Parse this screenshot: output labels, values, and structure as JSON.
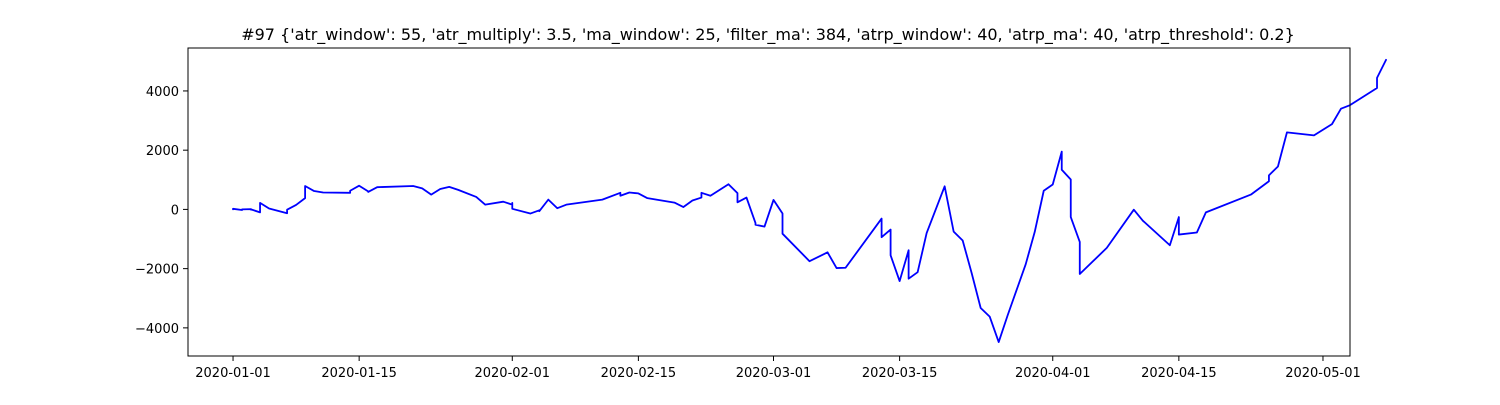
{
  "chart_data": {
    "type": "line",
    "title": "#97 {'atr_window': 55, 'atr_multiply': 3.5, 'ma_window': 25, 'filter_ma': 384, 'atrp_window': 40, 'atrp_ma': 40, 'atrp_threshold': 0.2}",
    "xlabel": "",
    "ylabel": "",
    "x_axis_type": "date",
    "xlim": [
      "2019-12-27",
      "2020-05-04"
    ],
    "ylim": [
      -4950,
      5450
    ],
    "grid": false,
    "legend": "none",
    "xticks": [
      "2020-01-01",
      "2020-01-15",
      "2020-02-01",
      "2020-02-15",
      "2020-03-01",
      "2020-03-15",
      "2020-04-01",
      "2020-04-15",
      "2020-05-01"
    ],
    "yticks": [
      4000,
      2000,
      0,
      -2000,
      -4000
    ],
    "ytick_labels": [
      "4000",
      "2000",
      "0",
      "−2000",
      "−4000"
    ],
    "series": [
      {
        "color": "#0000ff",
        "points": [
          [
            "2020-01-01",
            0
          ],
          [
            "2020-01-01",
            20
          ],
          [
            "2020-01-02",
            -20
          ],
          [
            "2020-01-02",
            0
          ],
          [
            "2020-01-03",
            10
          ],
          [
            "2020-01-03",
            -10
          ],
          [
            "2020-01-03",
            0
          ],
          [
            "2020-01-04",
            -100
          ],
          [
            "2020-01-04",
            220
          ],
          [
            "2020-01-05",
            30
          ],
          [
            "2020-01-07",
            -130
          ],
          [
            "2020-01-07",
            -10
          ],
          [
            "2020-01-08",
            150
          ],
          [
            "2020-01-09",
            380
          ],
          [
            "2020-01-09",
            790
          ],
          [
            "2020-01-10",
            620
          ],
          [
            "2020-01-11",
            570
          ],
          [
            "2020-01-14",
            560
          ],
          [
            "2020-01-14",
            630
          ],
          [
            "2020-01-15",
            800
          ],
          [
            "2020-01-16",
            610
          ],
          [
            "2020-01-16",
            590
          ],
          [
            "2020-01-17",
            750
          ],
          [
            "2020-01-21",
            790
          ],
          [
            "2020-01-22",
            710
          ],
          [
            "2020-01-23",
            500
          ],
          [
            "2020-01-24",
            690
          ],
          [
            "2020-01-25",
            760
          ],
          [
            "2020-01-26",
            660
          ],
          [
            "2020-01-28",
            420
          ],
          [
            "2020-01-29",
            160
          ],
          [
            "2020-01-31",
            260
          ],
          [
            "2020-02-01",
            160
          ],
          [
            "2020-02-01",
            220
          ],
          [
            "2020-02-01",
            20
          ],
          [
            "2020-02-03",
            -140
          ],
          [
            "2020-02-04",
            -30
          ],
          [
            "2020-02-04",
            -60
          ],
          [
            "2020-02-05",
            330
          ],
          [
            "2020-02-06",
            40
          ],
          [
            "2020-02-07",
            160
          ],
          [
            "2020-02-11",
            330
          ],
          [
            "2020-02-13",
            560
          ],
          [
            "2020-02-13",
            460
          ],
          [
            "2020-02-14",
            570
          ],
          [
            "2020-02-15",
            540
          ],
          [
            "2020-02-16",
            380
          ],
          [
            "2020-02-18",
            280
          ],
          [
            "2020-02-19",
            230
          ],
          [
            "2020-02-20",
            80
          ],
          [
            "2020-02-21",
            300
          ],
          [
            "2020-02-22",
            400
          ],
          [
            "2020-02-22",
            560
          ],
          [
            "2020-02-23",
            460
          ],
          [
            "2020-02-25",
            850
          ],
          [
            "2020-02-26",
            550
          ],
          [
            "2020-02-26",
            240
          ],
          [
            "2020-02-27",
            400
          ],
          [
            "2020-02-28",
            -460
          ],
          [
            "2020-02-28",
            -520
          ],
          [
            "2020-02-29",
            -580
          ],
          [
            "2020-03-01",
            320
          ],
          [
            "2020-03-02",
            -140
          ],
          [
            "2020-03-02",
            -820
          ],
          [
            "2020-03-05",
            -1750
          ],
          [
            "2020-03-07",
            -1450
          ],
          [
            "2020-03-08",
            -1980
          ],
          [
            "2020-03-09",
            -1970
          ],
          [
            "2020-03-13",
            -310
          ],
          [
            "2020-03-13",
            -940
          ],
          [
            "2020-03-14",
            -680
          ],
          [
            "2020-03-14",
            -750
          ],
          [
            "2020-03-14",
            -1550
          ],
          [
            "2020-03-15",
            -2420
          ],
          [
            "2020-03-16",
            -1380
          ],
          [
            "2020-03-16",
            -2340
          ],
          [
            "2020-03-17",
            -2120
          ],
          [
            "2020-03-18",
            -800
          ],
          [
            "2020-03-20",
            780
          ],
          [
            "2020-03-21",
            -750
          ],
          [
            "2020-03-22",
            -1050
          ],
          [
            "2020-03-23",
            -2150
          ],
          [
            "2020-03-24",
            -3330
          ],
          [
            "2020-03-25",
            -3620
          ],
          [
            "2020-03-26",
            -4480
          ],
          [
            "2020-03-27",
            -3570
          ],
          [
            "2020-03-29",
            -1850
          ],
          [
            "2020-03-30",
            -760
          ],
          [
            "2020-03-31",
            630
          ],
          [
            "2020-04-01",
            840
          ],
          [
            "2020-04-02",
            1950
          ],
          [
            "2020-04-02",
            1340
          ],
          [
            "2020-04-03",
            1010
          ],
          [
            "2020-04-03",
            -260
          ],
          [
            "2020-04-04",
            -1100
          ],
          [
            "2020-04-04",
            -2180
          ],
          [
            "2020-04-07",
            -1300
          ],
          [
            "2020-04-10",
            -10
          ],
          [
            "2020-04-11",
            -380
          ],
          [
            "2020-04-14",
            -1210
          ],
          [
            "2020-04-15",
            -260
          ],
          [
            "2020-04-15",
            -850
          ],
          [
            "2020-04-17",
            -780
          ],
          [
            "2020-04-18",
            -100
          ],
          [
            "2020-04-23",
            500
          ],
          [
            "2020-04-25",
            950
          ],
          [
            "2020-04-25",
            1150
          ],
          [
            "2020-04-26",
            1450
          ],
          [
            "2020-04-27",
            2600
          ],
          [
            "2020-04-30",
            2500
          ],
          [
            "2020-05-02",
            2880
          ],
          [
            "2020-05-03",
            3400
          ],
          [
            "2020-05-04",
            3520
          ],
          [
            "2020-05-07",
            4100
          ],
          [
            "2020-05-07",
            4440
          ],
          [
            "2020-05-08",
            5050
          ]
        ]
      }
    ]
  }
}
